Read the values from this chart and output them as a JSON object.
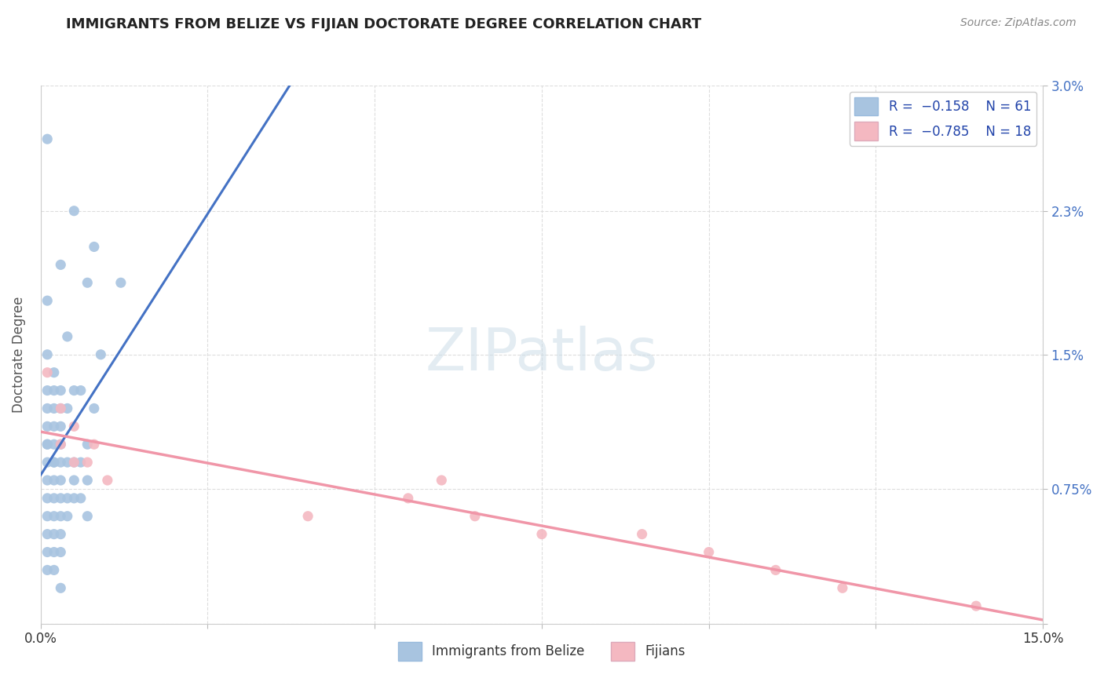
{
  "title": "IMMIGRANTS FROM BELIZE VS FIJIAN DOCTORATE DEGREE CORRELATION CHART",
  "source": "Source: ZipAtlas.com",
  "xlabel_label": "Immigrants from Belize",
  "xlabel_label2": "Fijians",
  "ylabel": "Doctorate Degree",
  "watermark": "ZIPatlas",
  "xlim": [
    0,
    0.15
  ],
  "ylim": [
    0,
    0.03
  ],
  "xticks": [
    0.0,
    0.025,
    0.05,
    0.075,
    0.1,
    0.125,
    0.15
  ],
  "xticklabels": [
    "0.0%",
    "",
    "",
    "",
    "",
    "",
    "15.0%"
  ],
  "ytick_right_labels": [
    "",
    "0.75%",
    "1.5%",
    "2.3%",
    "3.0%"
  ],
  "ytick_right_values": [
    0.0,
    0.0075,
    0.015,
    0.023,
    0.03
  ],
  "belize_color": "#a8c4e0",
  "fijian_color": "#f4b8c1",
  "belize_line_color": "#4472c4",
  "fijian_line_color": "#f096a8",
  "background_color": "#ffffff",
  "grid_color": "#dddddd",
  "belize_scatter": [
    [
      0.001,
      0.027
    ],
    [
      0.005,
      0.023
    ],
    [
      0.008,
      0.021
    ],
    [
      0.003,
      0.02
    ],
    [
      0.007,
      0.019
    ],
    [
      0.012,
      0.019
    ],
    [
      0.001,
      0.018
    ],
    [
      0.004,
      0.016
    ],
    [
      0.009,
      0.015
    ],
    [
      0.001,
      0.015
    ],
    [
      0.002,
      0.014
    ],
    [
      0.005,
      0.013
    ],
    [
      0.001,
      0.013
    ],
    [
      0.002,
      0.013
    ],
    [
      0.003,
      0.013
    ],
    [
      0.006,
      0.013
    ],
    [
      0.001,
      0.012
    ],
    [
      0.002,
      0.012
    ],
    [
      0.003,
      0.012
    ],
    [
      0.004,
      0.012
    ],
    [
      0.008,
      0.012
    ],
    [
      0.001,
      0.011
    ],
    [
      0.002,
      0.011
    ],
    [
      0.003,
      0.011
    ],
    [
      0.001,
      0.01
    ],
    [
      0.002,
      0.01
    ],
    [
      0.003,
      0.01
    ],
    [
      0.007,
      0.01
    ],
    [
      0.001,
      0.01
    ],
    [
      0.002,
      0.009
    ],
    [
      0.001,
      0.009
    ],
    [
      0.003,
      0.009
    ],
    [
      0.002,
      0.009
    ],
    [
      0.004,
      0.009
    ],
    [
      0.005,
      0.009
    ],
    [
      0.006,
      0.009
    ],
    [
      0.001,
      0.008
    ],
    [
      0.002,
      0.008
    ],
    [
      0.003,
      0.008
    ],
    [
      0.005,
      0.008
    ],
    [
      0.007,
      0.008
    ],
    [
      0.001,
      0.007
    ],
    [
      0.002,
      0.007
    ],
    [
      0.003,
      0.007
    ],
    [
      0.004,
      0.007
    ],
    [
      0.005,
      0.007
    ],
    [
      0.006,
      0.007
    ],
    [
      0.001,
      0.006
    ],
    [
      0.002,
      0.006
    ],
    [
      0.003,
      0.006
    ],
    [
      0.004,
      0.006
    ],
    [
      0.007,
      0.006
    ],
    [
      0.001,
      0.005
    ],
    [
      0.002,
      0.005
    ],
    [
      0.003,
      0.005
    ],
    [
      0.001,
      0.004
    ],
    [
      0.002,
      0.004
    ],
    [
      0.003,
      0.004
    ],
    [
      0.001,
      0.003
    ],
    [
      0.002,
      0.003
    ],
    [
      0.003,
      0.002
    ]
  ],
  "fijian_scatter": [
    [
      0.001,
      0.014
    ],
    [
      0.003,
      0.012
    ],
    [
      0.005,
      0.011
    ],
    [
      0.008,
      0.01
    ],
    [
      0.003,
      0.01
    ],
    [
      0.005,
      0.009
    ],
    [
      0.007,
      0.009
    ],
    [
      0.01,
      0.008
    ],
    [
      0.06,
      0.008
    ],
    [
      0.055,
      0.007
    ],
    [
      0.04,
      0.006
    ],
    [
      0.065,
      0.006
    ],
    [
      0.075,
      0.005
    ],
    [
      0.09,
      0.005
    ],
    [
      0.1,
      0.004
    ],
    [
      0.11,
      0.003
    ],
    [
      0.12,
      0.002
    ],
    [
      0.14,
      0.001
    ]
  ]
}
